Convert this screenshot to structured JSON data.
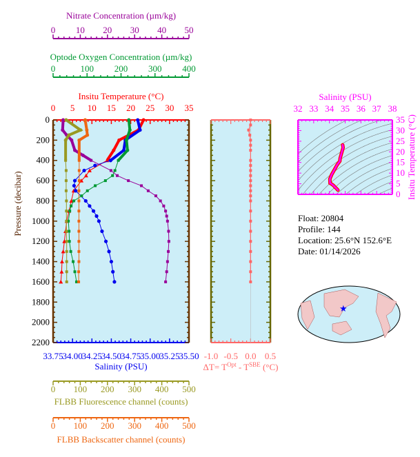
{
  "chart_data": [
    {
      "type": "line",
      "panel": "profile",
      "ylabel": "Pressure (decibar)",
      "ylim": [
        2200,
        0
      ],
      "yticks": [
        0,
        200,
        400,
        600,
        800,
        1000,
        1200,
        1400,
        1600,
        1800,
        2000,
        2200
      ],
      "axes": {
        "nitrate": {
          "title": "Nitrate Concentration (µm/kg)",
          "range": [
            0,
            50
          ],
          "ticks": [
            0,
            10,
            20,
            30,
            40,
            50
          ],
          "color": "#990099"
        },
        "oxygen": {
          "title": "Optode Oxygen Concentration (µm/kg)",
          "range": [
            0,
            400
          ],
          "ticks": [
            0,
            100,
            200,
            300,
            400
          ],
          "color": "#009933"
        },
        "temperature": {
          "title": "Insitu Temperature (°C)",
          "range": [
            0,
            35
          ],
          "ticks": [
            0,
            5,
            10,
            15,
            20,
            25,
            30,
            35
          ],
          "color": "#ff0000"
        },
        "salinity": {
          "title": "Salinity (PSU)",
          "range": [
            33.75,
            35.5
          ],
          "ticks": [
            "33.75",
            "34.00",
            "34.25",
            "34.50",
            "34.75",
            "35.00",
            "35.25",
            "35.50"
          ],
          "color": "#0000ee"
        },
        "fluorescence": {
          "title": "FLBB Fluorescence channel (counts)",
          "range": [
            0,
            500
          ],
          "ticks": [
            0,
            100,
            200,
            300,
            400,
            500
          ],
          "color": "#999922"
        },
        "backscatter": {
          "title": "FLBB Backscatter channel (counts)",
          "range": [
            0,
            500
          ],
          "ticks": [
            0,
            100,
            200,
            300,
            400,
            500
          ],
          "color": "#ee6611"
        }
      },
      "series": [
        {
          "axis": "temperature",
          "marker": "triangle",
          "p": [
            0,
            100,
            200,
            300,
            400,
            500,
            550,
            600,
            700,
            800,
            900,
            1000,
            1100,
            1200,
            1300,
            1400,
            1500,
            1600
          ],
          "v": [
            23.3,
            22,
            17,
            15.6,
            13.9,
            9.4,
            8.5,
            7.3,
            5.3,
            4.7,
            4.1,
            3.5,
            3.2,
            2.9,
            2.6,
            2.3,
            2.2,
            2.0
          ]
        },
        {
          "axis": "salinity",
          "marker": "circle",
          "p": [
            0,
            100,
            200,
            300,
            400,
            450,
            500,
            600,
            650,
            700,
            800,
            850,
            900,
            950,
            1000,
            1100,
            1200,
            1300,
            1400,
            1500,
            1600
          ],
          "v": [
            34.84,
            34.87,
            34.68,
            34.66,
            34.49,
            34.29,
            34.15,
            34.03,
            34.02,
            34.04,
            34.17,
            34.22,
            34.27,
            34.31,
            34.34,
            34.38,
            34.43,
            34.47,
            34.5,
            34.52,
            34.54
          ]
        },
        {
          "axis": "oxygen",
          "marker": "square",
          "p": [
            0,
            100,
            200,
            300,
            400,
            500,
            550,
            600,
            650,
            700,
            750,
            800,
            850,
            900,
            1000,
            1100,
            1200,
            1300,
            1400,
            1500,
            1600
          ],
          "v": [
            223,
            226,
            216,
            219,
            192,
            182,
            175,
            154,
            124,
            101,
            84,
            61,
            53,
            49,
            45,
            47,
            48,
            52,
            59,
            64,
            69
          ]
        },
        {
          "axis": "nitrate",
          "marker": "square",
          "p": [
            0,
            100,
            150,
            200,
            300,
            350,
            400,
            500,
            550,
            600,
            650,
            700,
            750,
            800,
            850,
            900,
            950,
            1000,
            1100,
            1200,
            1300,
            1400,
            1500,
            1600
          ],
          "v": [
            3.7,
            3.5,
            5,
            6.8,
            8,
            11,
            14,
            21.3,
            23.6,
            27.7,
            32.5,
            35,
            37.8,
            39.5,
            40.7,
            41.4,
            41.8,
            42.1,
            42.5,
            42.6,
            42.4,
            42.1,
            41.8,
            41.4
          ]
        },
        {
          "axis": "fluorescence",
          "marker": "square",
          "p": [
            0,
            100,
            150,
            200,
            400,
            500,
            600,
            700,
            800,
            900,
            1000,
            1100,
            1200,
            1300,
            1400,
            1500,
            1600
          ],
          "v": [
            48,
            101,
            58,
            46,
            46,
            48,
            48,
            48,
            49,
            49,
            49,
            49,
            50,
            50,
            50,
            50,
            50
          ]
        },
        {
          "axis": "backscatter",
          "marker": "square",
          "p": [
            0,
            100,
            150,
            200,
            400,
            500,
            600,
            700,
            800,
            900,
            1000,
            1100,
            1200,
            1300,
            1400,
            1500,
            1600
          ],
          "v": [
            118,
            124,
            126,
            96,
            96,
            96,
            96,
            95,
            95,
            95,
            95,
            95,
            95,
            95,
            95,
            94,
            94
          ]
        }
      ]
    },
    {
      "type": "line",
      "panel": "delta-t",
      "xlabel": "ΔT= T^Opt - T^SBE (°C)",
      "xlabel_parts": [
        "ΔT= T",
        "Opt",
        " - T",
        "SBE",
        " (°C)"
      ],
      "xlim": [
        -1.0,
        0.5
      ],
      "xticks": [
        "-1.0",
        "-0.5",
        "0.0",
        "0.5"
      ],
      "color": "#ff6666",
      "p": [
        0,
        50,
        100,
        150,
        200,
        250,
        300,
        400,
        450,
        500,
        550,
        600,
        650,
        700,
        750,
        800,
        900,
        1000,
        1100,
        1200,
        1300,
        1400,
        1500,
        1600
      ],
      "v": [
        0,
        0,
        -0.05,
        -0.02,
        0,
        0,
        0,
        0,
        0,
        0,
        0,
        0,
        0,
        0,
        0,
        0,
        0,
        0,
        0,
        0,
        0,
        0,
        0,
        0
      ]
    },
    {
      "type": "line",
      "panel": "t-s",
      "xlabel": "Salinity (PSU)",
      "ylabel": "Insitu Temperature (°C)",
      "xlim": [
        32,
        38
      ],
      "ylim": [
        0,
        35
      ],
      "xticks": [
        32,
        33,
        34,
        35,
        36,
        37,
        38
      ],
      "yticks": [
        0,
        5,
        10,
        15,
        20,
        25,
        30,
        35
      ],
      "color": "#ff00ff"
    }
  ],
  "info": {
    "float": "Float:  20804",
    "profile": "Profile:  144",
    "location": "Location:  25.6°N  152.6°E",
    "date": "Date:  01/14/2026"
  },
  "colors": {
    "plot_bg": "#cdeef8",
    "frame": "#663300",
    "delta_frame": "#666600"
  }
}
